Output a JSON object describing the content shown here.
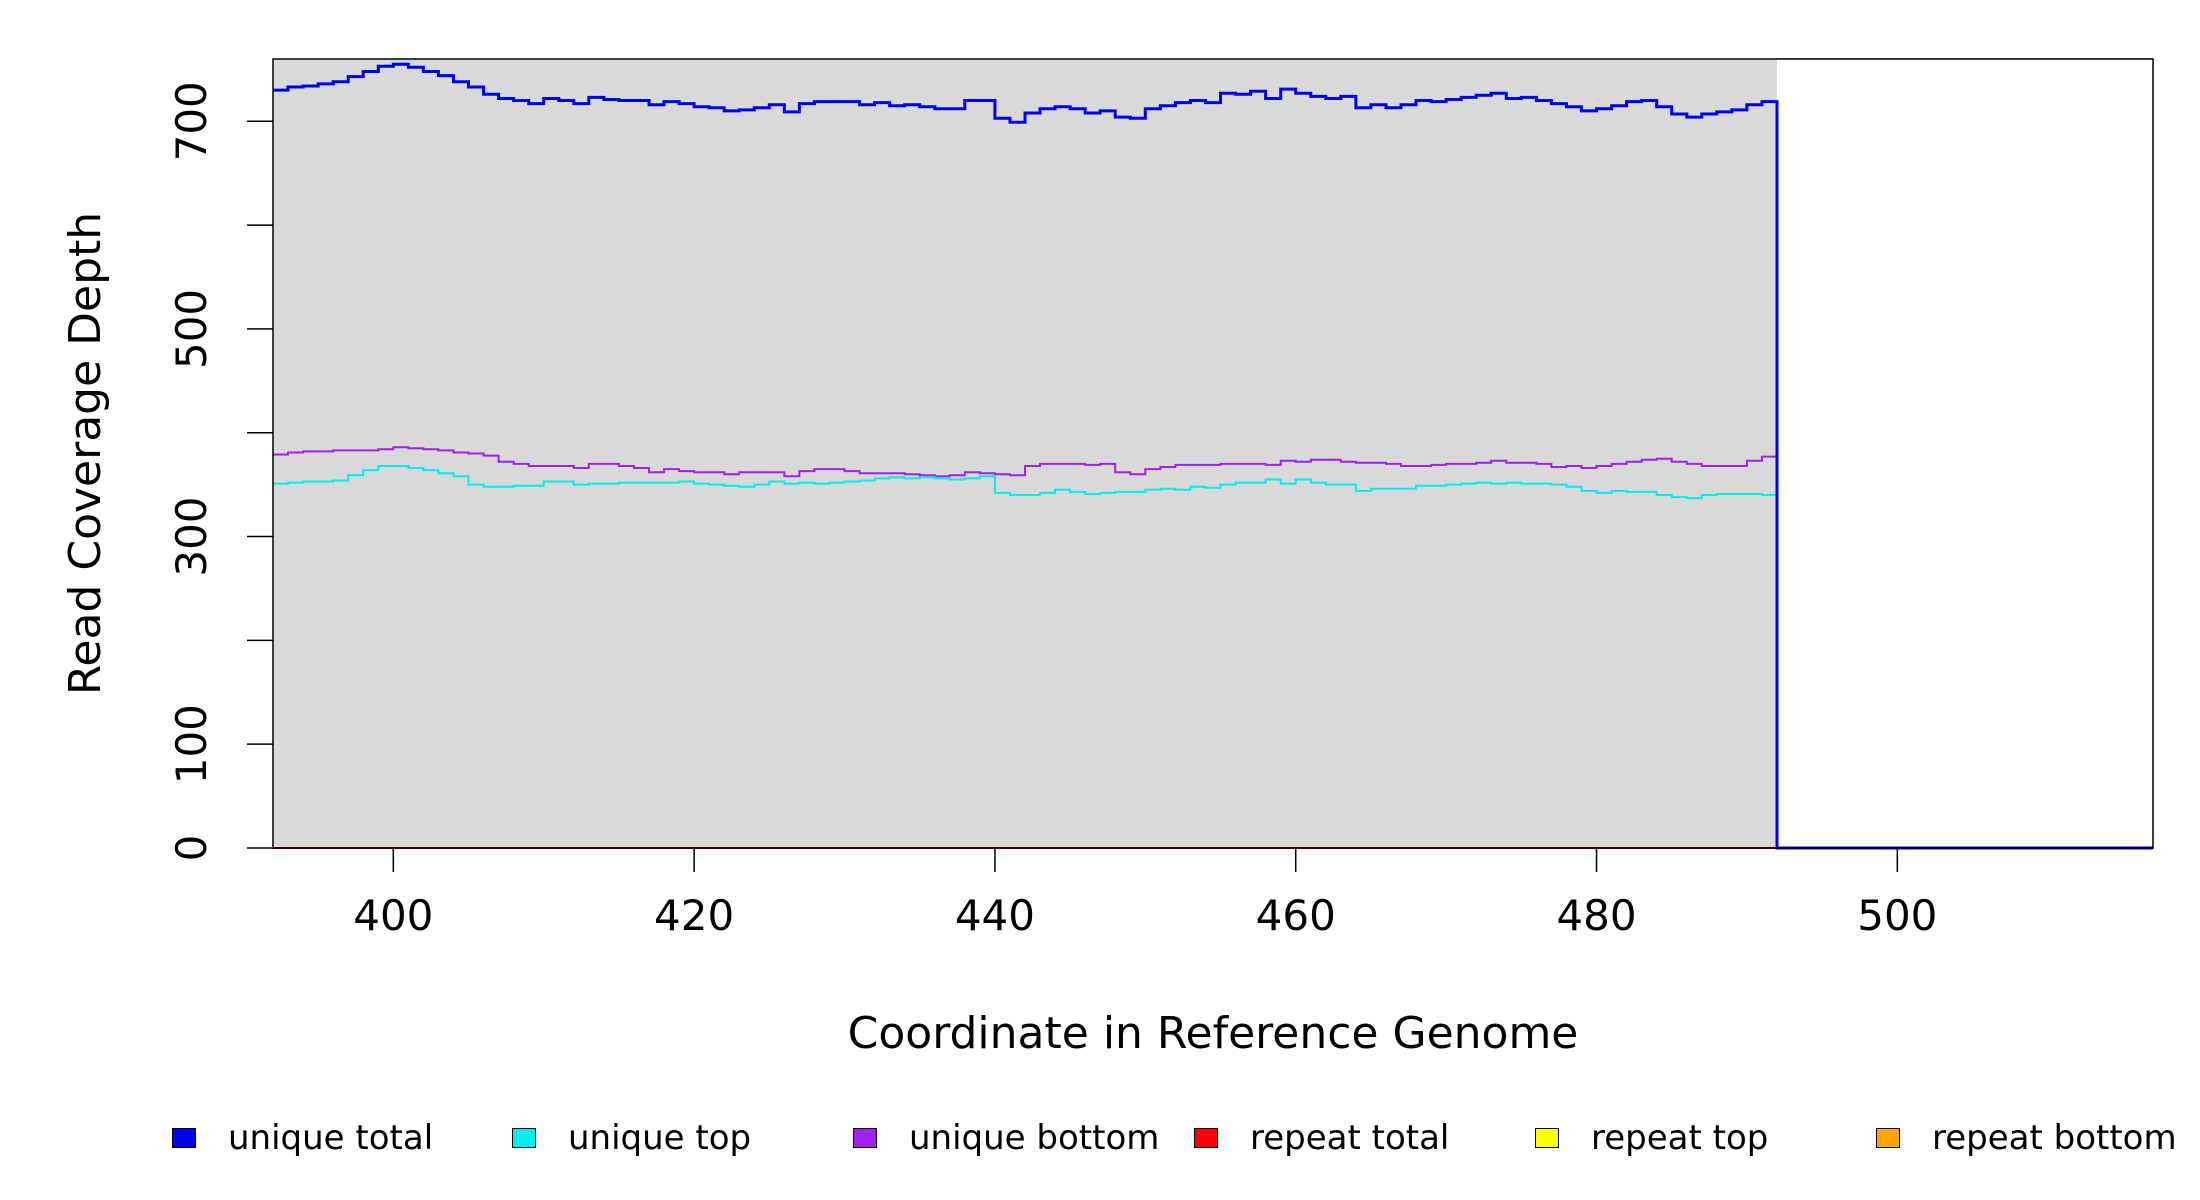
{
  "chart_data": {
    "type": "line",
    "xlabel": "Coordinate in Reference Genome",
    "ylabel": "Read Coverage Depth",
    "xlim": [
      392,
      517
    ],
    "ylim": [
      0,
      760
    ],
    "x_ticks": [
      400,
      420,
      440,
      460,
      480,
      500
    ],
    "y_ticks": [
      0,
      100,
      200,
      300,
      400,
      500,
      600,
      700
    ],
    "y_tick_labels": [
      "0",
      "100",
      "",
      "300",
      "",
      "500",
      "",
      "700"
    ],
    "shaded_region": [
      392,
      492
    ],
    "shaded_color": "#d9d9d9",
    "grid": false,
    "legend_position": "bottom",
    "series": [
      {
        "name": "unique total",
        "color": "#0000ee",
        "x": [
          392,
          393,
          394,
          395,
          396,
          397,
          398,
          399,
          400,
          401,
          402,
          403,
          404,
          405,
          406,
          407,
          408,
          409,
          410,
          411,
          412,
          413,
          414,
          415,
          416,
          417,
          418,
          419,
          420,
          421,
          422,
          423,
          424,
          425,
          426,
          427,
          428,
          429,
          430,
          431,
          432,
          433,
          434,
          435,
          436,
          437,
          438,
          439,
          440,
          441,
          442,
          443,
          444,
          445,
          446,
          447,
          448,
          449,
          450,
          451,
          452,
          453,
          454,
          455,
          456,
          457,
          458,
          459,
          460,
          461,
          462,
          463,
          464,
          465,
          466,
          467,
          468,
          469,
          470,
          471,
          472,
          473,
          474,
          475,
          476,
          477,
          478,
          479,
          480,
          481,
          482,
          483,
          484,
          485,
          486,
          487,
          488,
          489,
          490,
          491,
          492,
          493,
          494,
          495,
          496,
          497,
          498,
          499,
          500,
          501,
          502,
          503,
          504,
          505,
          506,
          507,
          508,
          509,
          510,
          511,
          512,
          513,
          514,
          515,
          516,
          517
        ],
        "y": [
          730,
          733,
          734,
          736,
          738,
          743,
          748,
          753,
          755,
          752,
          748,
          744,
          738,
          733,
          726,
          722,
          720,
          717,
          722,
          720,
          717,
          723,
          721,
          720,
          720,
          716,
          719,
          717,
          714,
          713,
          710,
          711,
          713,
          716,
          709,
          717,
          719,
          719,
          719,
          716,
          718,
          715,
          716,
          714,
          712,
          712,
          720,
          720,
          703,
          699,
          708,
          712,
          714,
          712,
          708,
          710,
          704,
          703,
          712,
          715,
          718,
          720,
          718,
          727,
          726,
          729,
          722,
          731,
          727,
          724,
          722,
          724,
          713,
          716,
          713,
          716,
          720,
          719,
          721,
          723,
          725,
          727,
          722,
          723,
          720,
          717,
          714,
          710,
          712,
          715,
          719,
          720,
          714,
          707,
          704,
          707,
          709,
          711,
          716,
          719,
          0,
          0,
          0,
          0,
          0,
          0,
          0,
          0,
          0,
          0,
          0,
          0,
          0,
          0,
          0,
          0,
          0,
          0,
          0,
          0,
          0,
          0,
          0,
          0,
          0,
          0
        ]
      },
      {
        "name": "unique top",
        "color": "#00eeee",
        "x": [
          392,
          393,
          394,
          395,
          396,
          397,
          398,
          399,
          400,
          401,
          402,
          403,
          404,
          405,
          406,
          407,
          408,
          409,
          410,
          411,
          412,
          413,
          414,
          415,
          416,
          417,
          418,
          419,
          420,
          421,
          422,
          423,
          424,
          425,
          426,
          427,
          428,
          429,
          430,
          431,
          432,
          433,
          434,
          435,
          436,
          437,
          438,
          439,
          440,
          441,
          442,
          443,
          444,
          445,
          446,
          447,
          448,
          449,
          450,
          451,
          452,
          453,
          454,
          455,
          456,
          457,
          458,
          459,
          460,
          461,
          462,
          463,
          464,
          465,
          466,
          467,
          468,
          469,
          470,
          471,
          472,
          473,
          474,
          475,
          476,
          477,
          478,
          479,
          480,
          481,
          482,
          483,
          484,
          485,
          486,
          487,
          488,
          489,
          490,
          491,
          492,
          493,
          494,
          495,
          496,
          497,
          498,
          499,
          500,
          501,
          502,
          503,
          504,
          505,
          506,
          507,
          508,
          509,
          510,
          511,
          512,
          513,
          514,
          515,
          516,
          517
        ],
        "y": [
          351,
          352,
          353,
          353,
          354,
          359,
          364,
          368,
          368,
          366,
          364,
          361,
          358,
          350,
          348,
          348,
          349,
          349,
          353,
          353,
          350,
          351,
          351,
          352,
          352,
          352,
          352,
          353,
          351,
          350,
          349,
          348,
          350,
          353,
          351,
          352,
          351,
          352,
          353,
          354,
          356,
          357,
          356,
          357,
          356,
          355,
          356,
          358,
          342,
          340,
          340,
          342,
          345,
          343,
          341,
          342,
          343,
          343,
          345,
          346,
          345,
          348,
          347,
          350,
          352,
          352,
          355,
          351,
          355,
          352,
          350,
          350,
          344,
          346,
          346,
          346,
          349,
          349,
          350,
          351,
          352,
          351,
          352,
          351,
          351,
          350,
          348,
          344,
          342,
          344,
          343,
          343,
          340,
          338,
          337,
          340,
          341,
          341,
          341,
          340,
          0,
          0,
          0,
          0,
          0,
          0,
          0,
          0,
          0,
          0,
          0,
          0,
          0,
          0,
          0,
          0,
          0,
          0,
          0,
          0,
          0,
          0,
          0,
          0,
          0,
          0
        ]
      },
      {
        "name": "unique bottom",
        "color": "#a020f0",
        "x": [
          392,
          393,
          394,
          395,
          396,
          397,
          398,
          399,
          400,
          401,
          402,
          403,
          404,
          405,
          406,
          407,
          408,
          409,
          410,
          411,
          412,
          413,
          414,
          415,
          416,
          417,
          418,
          419,
          420,
          421,
          422,
          423,
          424,
          425,
          426,
          427,
          428,
          429,
          430,
          431,
          432,
          433,
          434,
          435,
          436,
          437,
          438,
          439,
          440,
          441,
          442,
          443,
          444,
          445,
          446,
          447,
          448,
          449,
          450,
          451,
          452,
          453,
          454,
          455,
          456,
          457,
          458,
          459,
          460,
          461,
          462,
          463,
          464,
          465,
          466,
          467,
          468,
          469,
          470,
          471,
          472,
          473,
          474,
          475,
          476,
          477,
          478,
          479,
          480,
          481,
          482,
          483,
          484,
          485,
          486,
          487,
          488,
          489,
          490,
          491,
          492,
          493,
          494,
          495,
          496,
          497,
          498,
          499,
          500,
          501,
          502,
          503,
          504,
          505,
          506,
          507,
          508,
          509,
          510,
          511,
          512,
          513,
          514,
          515,
          516,
          517
        ],
        "y": [
          379,
          381,
          382,
          382,
          383,
          383,
          383,
          384,
          386,
          385,
          384,
          383,
          381,
          380,
          378,
          372,
          370,
          368,
          368,
          368,
          366,
          370,
          370,
          368,
          366,
          362,
          365,
          363,
          362,
          362,
          360,
          362,
          362,
          362,
          358,
          363,
          365,
          365,
          363,
          361,
          361,
          361,
          360,
          359,
          358,
          359,
          362,
          361,
          360,
          359,
          368,
          370,
          370,
          370,
          369,
          370,
          362,
          360,
          365,
          367,
          369,
          369,
          369,
          370,
          370,
          370,
          369,
          373,
          372,
          374,
          374,
          372,
          371,
          371,
          370,
          368,
          368,
          369,
          370,
          370,
          371,
          373,
          371,
          371,
          370,
          367,
          368,
          366,
          368,
          370,
          372,
          374,
          375,
          372,
          370,
          368,
          368,
          368,
          373,
          377,
          0,
          0,
          0,
          0,
          0,
          0,
          0,
          0,
          0,
          0,
          0,
          0,
          0,
          0,
          0,
          0,
          0,
          0,
          0,
          0,
          0,
          0,
          0,
          0,
          0,
          0
        ]
      },
      {
        "name": "repeat total",
        "color": "#ff0000",
        "x": [
          392,
          517
        ],
        "y": [
          0,
          0
        ]
      },
      {
        "name": "repeat top",
        "color": "#ffff00",
        "x": [
          392,
          517
        ],
        "y": [
          0,
          0
        ]
      },
      {
        "name": "repeat bottom",
        "color": "#ffa500",
        "x": [
          392,
          517
        ],
        "y": [
          0,
          0
        ]
      }
    ]
  }
}
